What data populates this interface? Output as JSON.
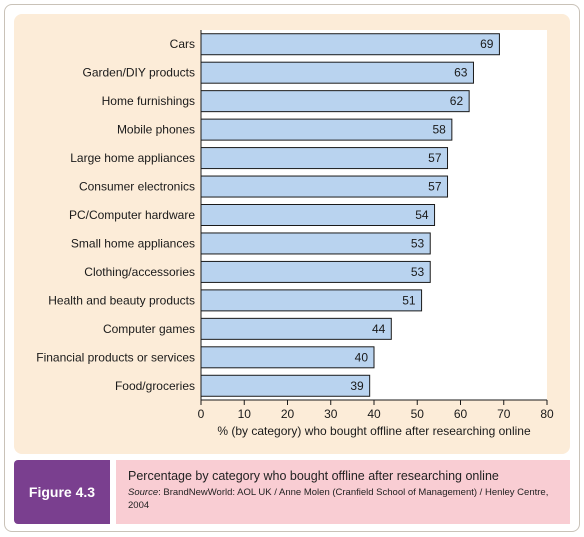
{
  "figure": {
    "label": "Figure 4.3",
    "caption": "Percentage by category who bought offline after researching online",
    "source_label": "Source",
    "source_text": ": BrandNewWorld: AOL UK / Anne Molen (Cranfield School of Management) / Henley Centre, 2004"
  },
  "colors": {
    "panel_bg": "#fcecd8",
    "plot_bg": "#ffffff",
    "bar_fill": "#b9d3ef",
    "bar_stroke": "#1a1a1a",
    "figure_label_bg": "#7a3f8f",
    "caption_bg": "#f9cdd3"
  },
  "chart_data": {
    "type": "bar",
    "orientation": "horizontal",
    "categories": [
      "Cars",
      "Garden/DIY products",
      "Home furnishings",
      "Mobile phones",
      "Large home appliances",
      "Consumer electronics",
      "PC/Computer hardware",
      "Small home appliances",
      "Clothing/accessories",
      "Health and beauty products",
      "Computer games",
      "Financial products or services",
      "Food/groceries"
    ],
    "values": [
      69,
      63,
      62,
      58,
      57,
      57,
      54,
      53,
      53,
      51,
      44,
      40,
      39
    ],
    "xlabel": "% (by category) who bought offline after researching online",
    "xlim": [
      0,
      80
    ],
    "xticks": [
      0,
      10,
      20,
      30,
      40,
      50,
      60,
      70,
      80
    ],
    "data_labels": true,
    "grid": false
  }
}
